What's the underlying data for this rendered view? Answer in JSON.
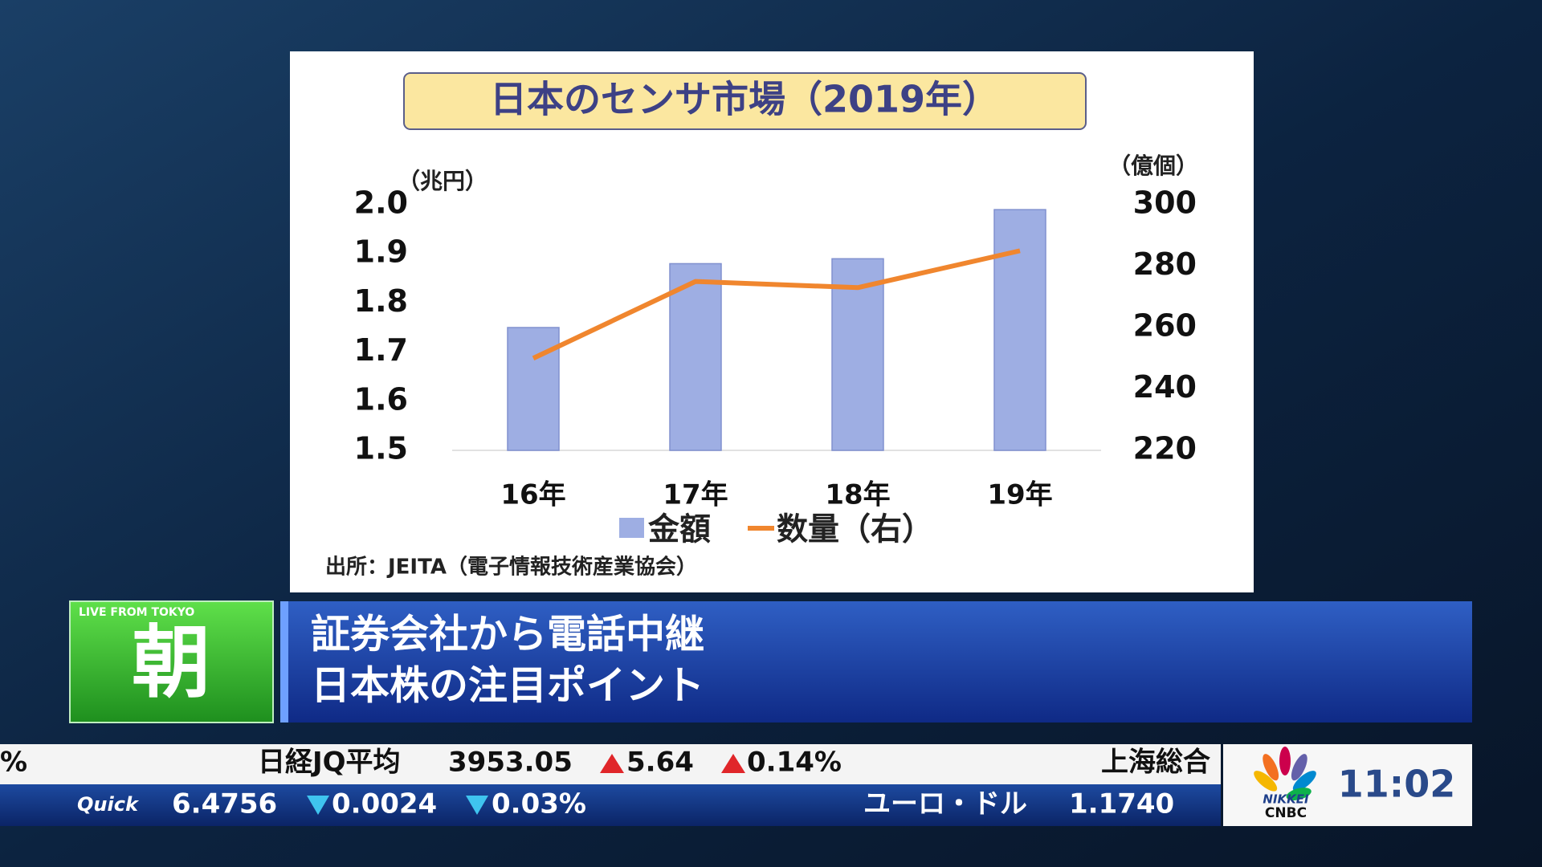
{
  "chart_data": {
    "type": "bar",
    "title": "日本のセンサ市場（2019年）",
    "y_label": "（兆円）",
    "y2_label": "（億個）",
    "categories": [
      "16年",
      "17年",
      "18年",
      "19年"
    ],
    "series": [
      {
        "name": "金額",
        "type": "bar",
        "color": "#9eaee3",
        "values": [
          1.75,
          1.88,
          1.89,
          1.99
        ]
      },
      {
        "name": "数量（右）",
        "type": "line",
        "color": "#f0862e",
        "axis": "y2",
        "values": [
          250,
          275,
          273,
          285
        ]
      }
    ],
    "ylim": [
      1.5,
      2.0
    ],
    "yticks": [
      1.5,
      1.6,
      1.7,
      1.8,
      1.9,
      {
        "value": 2,
        "label": "2.0"
      }
    ],
    "y2lim": [
      220,
      300
    ],
    "y2ticks": [
      220,
      240,
      260,
      280,
      300
    ],
    "source": "出所：JEITA（電子情報技術産業協会）"
  },
  "program": {
    "badge": "LIVE FROM TOKYO",
    "name": "朝",
    "headline": [
      "証券会社から電話中継",
      "日本株の注目ポイント"
    ]
  },
  "ticker": {
    "row1": {
      "lead": "%",
      "index": "日経JQ平均",
      "price": "3953.05",
      "change": "5.64",
      "percent": "0.14%",
      "next": "上海総合"
    },
    "row2": {
      "source": "Quick",
      "price": "6.4756",
      "change": "0.0024",
      "percent": "0.03%",
      "pair": "ユーロ・ドル",
      "pair_price": "1.1740"
    }
  },
  "logo": {
    "line1": "NIKKEI",
    "line2": "CNBC",
    "time": "11:02"
  }
}
